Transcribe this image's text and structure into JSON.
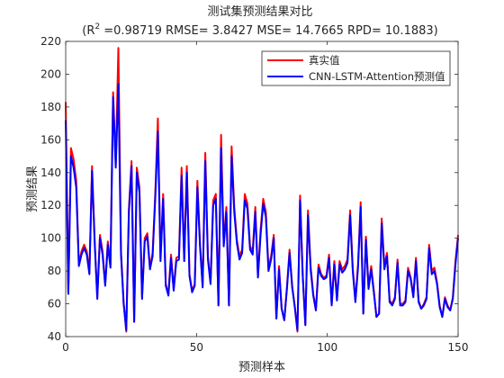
{
  "chart_data": {
    "type": "line",
    "title": "测试集预测结果对比",
    "subtitle": {
      "prefix": "(R",
      "sup": "2",
      "rest": " =0.98719 RMSE= 3.8427 MSE= 14.7665 RPD= 10.1883)"
    },
    "xlabel": "预测样本",
    "ylabel": "预测结果",
    "xlim": [
      0,
      150
    ],
    "ylim": [
      40,
      220
    ],
    "xticks": [
      0,
      50,
      100,
      150
    ],
    "yticks": [
      40,
      60,
      80,
      100,
      120,
      140,
      160,
      180,
      200,
      220
    ],
    "grid": false,
    "legend_position": "top-right",
    "series": [
      {
        "name": "真实值",
        "color": "#ff0000",
        "values": [
          183,
          67,
          155,
          148,
          135,
          84,
          92,
          96,
          92,
          79,
          144,
          99,
          64,
          102,
          92,
          72,
          98,
          84,
          189,
          145,
          216,
          92,
          61,
          43,
          118,
          147,
          49,
          143,
          131,
          64,
          100,
          103,
          82,
          91,
          127,
          173,
          88,
          127,
          72,
          66,
          90,
          69,
          88,
          89,
          143,
          88,
          144,
          78,
          68,
          72,
          135,
          97,
          71,
          152,
          89,
          73,
          123,
          127,
          59,
          163,
          97,
          119,
          59,
          156,
          119,
          99,
          89,
          93,
          127,
          121,
          95,
          92,
          119,
          77,
          105,
          124,
          116,
          82,
          89,
          102,
          51,
          83,
          57,
          50,
          70,
          93,
          71,
          58,
          43,
          126,
          78,
          47,
          117,
          83,
          66,
          56,
          84,
          78,
          76,
          77,
          90,
          60,
          86,
          63,
          86,
          81,
          83,
          87,
          117,
          82,
          62,
          84,
          122,
          54,
          101,
          70,
          83,
          68,
          52,
          54,
          112,
          83,
          91,
          62,
          60,
          64,
          87,
          60,
          60,
          62,
          82,
          76,
          65,
          88,
          62,
          57,
          60,
          64,
          96,
          80,
          82,
          73,
          59,
          52,
          64,
          59,
          56,
          64,
          86,
          102
        ]
      },
      {
        "name": "CNN-LSTM-Attention预测值",
        "color": "#0000ff",
        "values": [
          172,
          66,
          150,
          143,
          131,
          83,
          90,
          94,
          90,
          78,
          141,
          97,
          63,
          100,
          90,
          71,
          96,
          82,
          186,
          143,
          194,
          90,
          60,
          44,
          116,
          144,
          49,
          140,
          128,
          63,
          98,
          101,
          81,
          89,
          124,
          165,
          86,
          124,
          71,
          65,
          88,
          68,
          86,
          87,
          138,
          86,
          140,
          77,
          67,
          71,
          131,
          95,
          70,
          147,
          87,
          72,
          120,
          124,
          59,
          155,
          95,
          116,
          59,
          150,
          116,
          97,
          87,
          91,
          123,
          118,
          93,
          90,
          116,
          76,
          102,
          121,
          113,
          80,
          87,
          100,
          51,
          81,
          57,
          50,
          69,
          91,
          70,
          58,
          44,
          123,
          77,
          47,
          114,
          81,
          65,
          56,
          82,
          77,
          75,
          76,
          88,
          59,
          84,
          62,
          84,
          79,
          81,
          85,
          114,
          80,
          61,
          82,
          119,
          54,
          99,
          69,
          81,
          67,
          52,
          54,
          109,
          81,
          89,
          61,
          59,
          63,
          85,
          59,
          59,
          61,
          80,
          75,
          64,
          86,
          61,
          57,
          59,
          63,
          94,
          78,
          80,
          72,
          58,
          52,
          63,
          58,
          56,
          63,
          84,
          100
        ]
      }
    ]
  }
}
